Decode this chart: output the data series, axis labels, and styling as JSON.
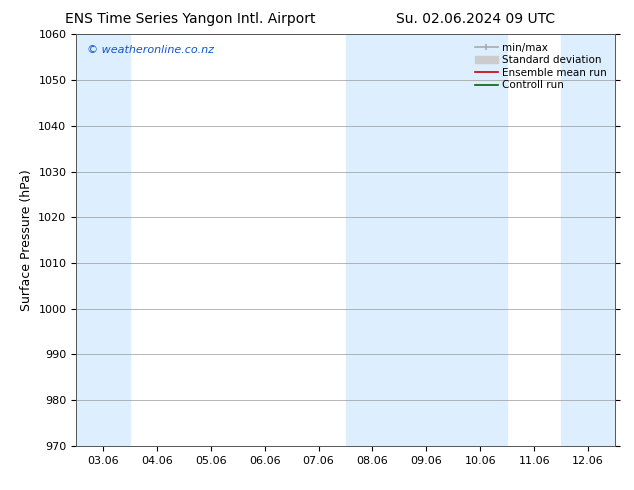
{
  "title_left": "ENS Time Series Yangon Intl. Airport",
  "title_right": "Su. 02.06.2024 09 UTC",
  "ylabel": "Surface Pressure (hPa)",
  "ylim": [
    970,
    1060
  ],
  "yticks": [
    970,
    980,
    990,
    1000,
    1010,
    1020,
    1030,
    1040,
    1050,
    1060
  ],
  "xtick_labels": [
    "03.06",
    "04.06",
    "05.06",
    "06.06",
    "07.06",
    "08.06",
    "09.06",
    "10.06",
    "11.06",
    "12.06"
  ],
  "watermark": "© weatheronline.co.nz",
  "watermark_color": "#1155cc",
  "bg_color": "#ffffff",
  "plot_bg_color": "#ffffff",
  "shade_color": "#ddeeff",
  "title_fontsize": 10,
  "axis_label_fontsize": 9,
  "tick_fontsize": 8,
  "legend_fontsize": 7.5,
  "watermark_fontsize": 8
}
